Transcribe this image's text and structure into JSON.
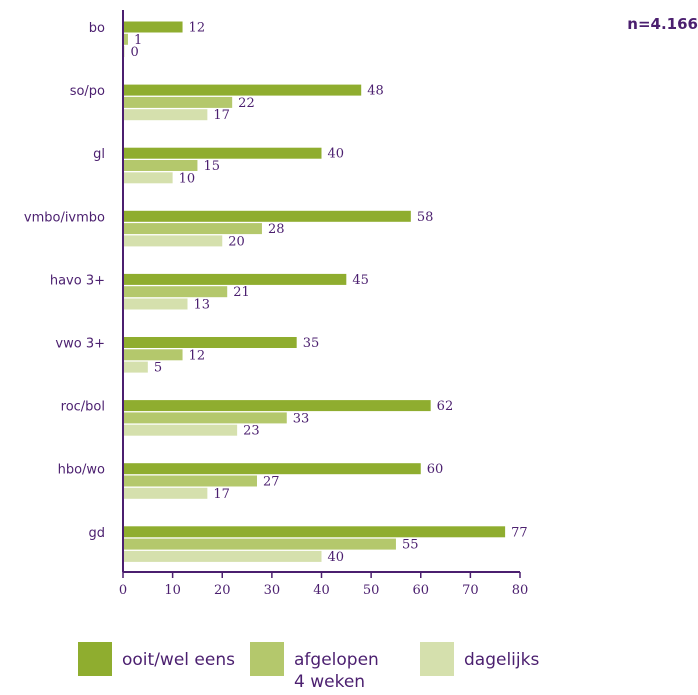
{
  "n_label": "n=4.166",
  "colors": {
    "text": "#4b1f6f",
    "axis": "#4b1f6f",
    "ooit": "#8fad2f",
    "afgelopen": "#b4c86c",
    "dagelijks": "#d5e0ad"
  },
  "chart_data": {
    "type": "bar",
    "orientation": "horizontal",
    "categories": [
      "bo",
      "so/po",
      "gl",
      "vmbo/ivmbo",
      "havo 3+",
      "vwo 3+",
      "roc/bol",
      "hbo/wo",
      "gd"
    ],
    "series": [
      {
        "name": "ooit/wel eens",
        "color": "#8fad2f",
        "values": [
          12,
          48,
          40,
          58,
          45,
          35,
          62,
          60,
          77
        ]
      },
      {
        "name": "afgelopen\n4 weken",
        "color": "#b4c86c",
        "values": [
          1,
          22,
          15,
          28,
          21,
          12,
          33,
          27,
          55
        ]
      },
      {
        "name": "dagelijks",
        "color": "#d5e0ad",
        "values": [
          0,
          17,
          10,
          20,
          13,
          5,
          23,
          17,
          40
        ]
      }
    ],
    "xlim": [
      0,
      80
    ],
    "xticks": [
      0,
      10,
      20,
      30,
      40,
      50,
      60,
      70,
      80
    ],
    "grid": false,
    "legend_position": "bottom"
  }
}
